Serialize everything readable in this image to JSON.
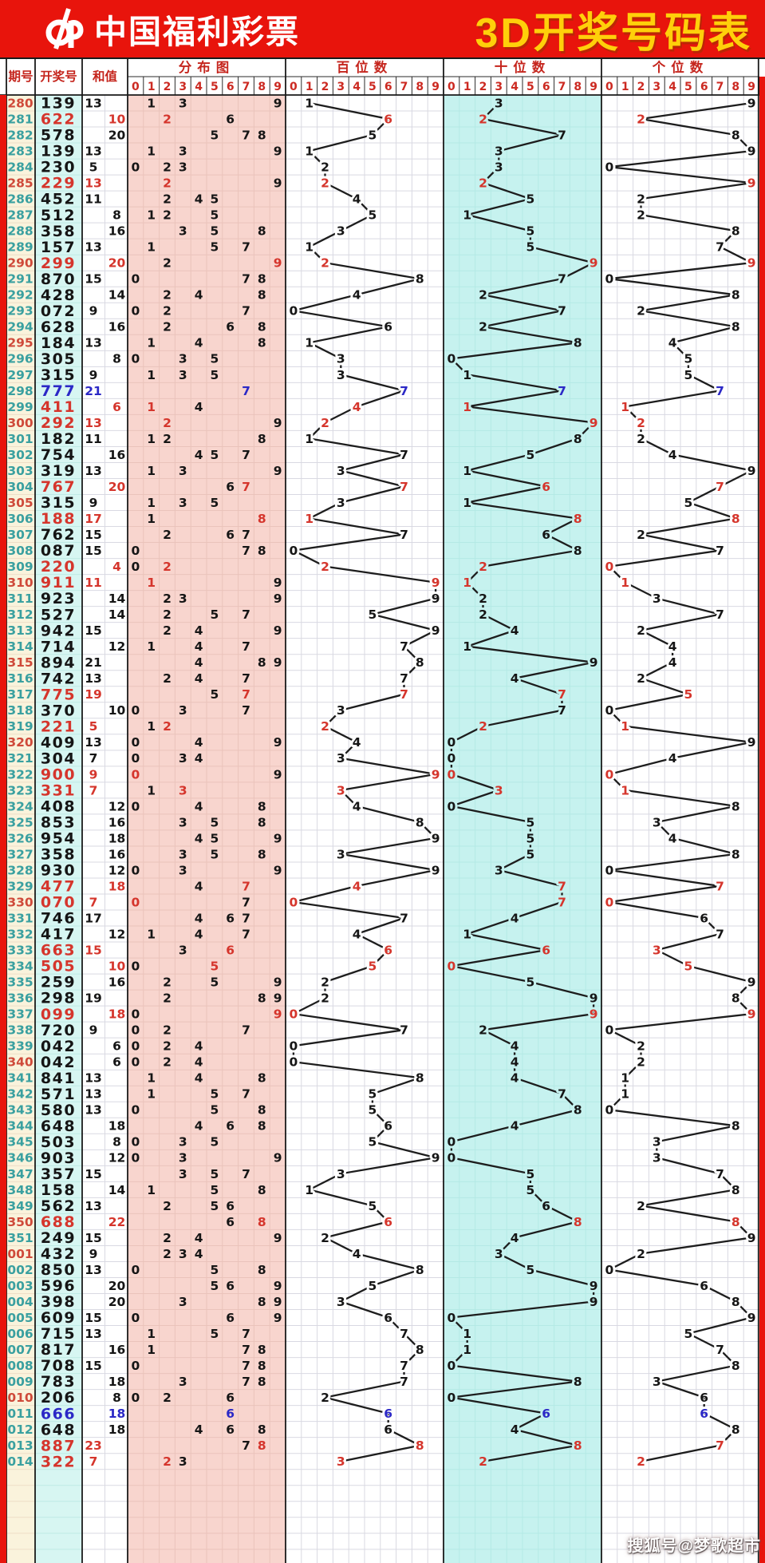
{
  "header": {
    "brand": "中国福利彩票",
    "title": "3D开奖号码表"
  },
  "columns": {
    "period": "期号",
    "number": "开奖号",
    "sum": "和值",
    "distribution": "分布图",
    "hundreds": "百位数",
    "tens": "十位数",
    "units": "个位数"
  },
  "digit_labels": [
    "0",
    "1",
    "2",
    "3",
    "4",
    "5",
    "6",
    "7",
    "8",
    "9"
  ],
  "watermark": {
    "text": "搜狐号@梦歌超市"
  },
  "colors": {
    "banner_red": "#e8140c",
    "title_yellow": "#ffd00a",
    "header_label_red": "#c5251d",
    "digit_header_red": "#cc2a22",
    "period_teal": "#3aa0a0",
    "period_red": "#cf4a3a",
    "text_black": "#151515",
    "pair_red": "#d5352c",
    "triple_blue": "#2b28c6",
    "bg_period_cream": "#faf3dc",
    "bg_number_cyan": "#d7f6f2",
    "bg_distribution_pink": "#f8d5ce",
    "bg_tens_cyan": "#c6f2ef",
    "grid_gray": "#d9d9e2",
    "grid_pink": "#eac3bb",
    "grid_cyan": "#b4e9e5",
    "grid_cream": "#eedec7",
    "grid_lightcyan": "#bfeae5",
    "line_black": "#1d1d1d",
    "border_black": "#1a1a1a"
  },
  "chart_data": {
    "type": "table",
    "note": "3D lottery number chart. Each row: period, 3-digit winning number, digit sum. Sum prints in left sub-column when odd, right when even. 分布图 marks every distinct digit of the number at positions 0-9 (repeated digit shown red). 百位数/十位数/个位数 plot the hundreds/tens/units digit at positions 0-9, consecutive rows joined by black zigzag lines. Numbers with a repeated digit (pairs) print red; triples (777, 666) print blue; period numbers print red when flagged.",
    "digit_axis": [
      0,
      1,
      2,
      3,
      4,
      5,
      6,
      7,
      8,
      9
    ],
    "rows": [
      {
        "period": "280",
        "number": "139",
        "sum": 13,
        "highlight": "none",
        "period_red": true
      },
      {
        "period": "281",
        "number": "622",
        "sum": 10,
        "highlight": "pair",
        "period_red": false
      },
      {
        "period": "282",
        "number": "578",
        "sum": 20,
        "highlight": "none",
        "period_red": false
      },
      {
        "period": "283",
        "number": "139",
        "sum": 13,
        "highlight": "none",
        "period_red": false
      },
      {
        "period": "284",
        "number": "230",
        "sum": 5,
        "highlight": "none",
        "period_red": false
      },
      {
        "period": "285",
        "number": "229",
        "sum": 13,
        "highlight": "pair",
        "period_red": true
      },
      {
        "period": "286",
        "number": "452",
        "sum": 11,
        "highlight": "none",
        "period_red": false
      },
      {
        "period": "287",
        "number": "512",
        "sum": 8,
        "highlight": "none",
        "period_red": false
      },
      {
        "period": "288",
        "number": "358",
        "sum": 16,
        "highlight": "none",
        "period_red": false
      },
      {
        "period": "289",
        "number": "157",
        "sum": 13,
        "highlight": "none",
        "period_red": false
      },
      {
        "period": "290",
        "number": "299",
        "sum": 20,
        "highlight": "pair",
        "period_red": true
      },
      {
        "period": "291",
        "number": "870",
        "sum": 15,
        "highlight": "none",
        "period_red": false
      },
      {
        "period": "292",
        "number": "428",
        "sum": 14,
        "highlight": "none",
        "period_red": false
      },
      {
        "period": "293",
        "number": "072",
        "sum": 9,
        "highlight": "none",
        "period_red": false
      },
      {
        "period": "294",
        "number": "628",
        "sum": 16,
        "highlight": "none",
        "period_red": false
      },
      {
        "period": "295",
        "number": "184",
        "sum": 13,
        "highlight": "none",
        "period_red": true
      },
      {
        "period": "296",
        "number": "305",
        "sum": 8,
        "highlight": "none",
        "period_red": false
      },
      {
        "period": "297",
        "number": "315",
        "sum": 9,
        "highlight": "none",
        "period_red": false
      },
      {
        "period": "298",
        "number": "777",
        "sum": 21,
        "highlight": "triple",
        "period_red": false
      },
      {
        "period": "299",
        "number": "411",
        "sum": 6,
        "highlight": "pair",
        "period_red": false
      },
      {
        "period": "300",
        "number": "292",
        "sum": 13,
        "highlight": "pair",
        "period_red": true
      },
      {
        "period": "301",
        "number": "182",
        "sum": 11,
        "highlight": "none",
        "period_red": false
      },
      {
        "period": "302",
        "number": "754",
        "sum": 16,
        "highlight": "none",
        "period_red": false
      },
      {
        "period": "303",
        "number": "319",
        "sum": 13,
        "highlight": "none",
        "period_red": false
      },
      {
        "period": "304",
        "number": "767",
        "sum": 20,
        "highlight": "pair",
        "period_red": false
      },
      {
        "period": "305",
        "number": "315",
        "sum": 9,
        "highlight": "none",
        "period_red": true
      },
      {
        "period": "306",
        "number": "188",
        "sum": 17,
        "highlight": "pair",
        "period_red": false
      },
      {
        "period": "307",
        "number": "762",
        "sum": 15,
        "highlight": "none",
        "period_red": false
      },
      {
        "period": "308",
        "number": "087",
        "sum": 15,
        "highlight": "none",
        "period_red": false
      },
      {
        "period": "309",
        "number": "220",
        "sum": 4,
        "highlight": "pair",
        "period_red": false
      },
      {
        "period": "310",
        "number": "911",
        "sum": 11,
        "highlight": "pair",
        "period_red": true
      },
      {
        "period": "311",
        "number": "923",
        "sum": 14,
        "highlight": "none",
        "period_red": false
      },
      {
        "period": "312",
        "number": "527",
        "sum": 14,
        "highlight": "none",
        "period_red": false
      },
      {
        "period": "313",
        "number": "942",
        "sum": 15,
        "highlight": "none",
        "period_red": false
      },
      {
        "period": "314",
        "number": "714",
        "sum": 12,
        "highlight": "none",
        "period_red": false
      },
      {
        "period": "315",
        "number": "894",
        "sum": 21,
        "highlight": "none",
        "period_red": true
      },
      {
        "period": "316",
        "number": "742",
        "sum": 13,
        "highlight": "none",
        "period_red": false
      },
      {
        "period": "317",
        "number": "775",
        "sum": 19,
        "highlight": "pair",
        "period_red": false
      },
      {
        "period": "318",
        "number": "370",
        "sum": 10,
        "highlight": "none",
        "period_red": false
      },
      {
        "period": "319",
        "number": "221",
        "sum": 5,
        "highlight": "pair",
        "period_red": false
      },
      {
        "period": "320",
        "number": "409",
        "sum": 13,
        "highlight": "none",
        "period_red": true
      },
      {
        "period": "321",
        "number": "304",
        "sum": 7,
        "highlight": "none",
        "period_red": false
      },
      {
        "period": "322",
        "number": "900",
        "sum": 9,
        "highlight": "pair",
        "period_red": false
      },
      {
        "period": "323",
        "number": "331",
        "sum": 7,
        "highlight": "pair",
        "period_red": false
      },
      {
        "period": "324",
        "number": "408",
        "sum": 12,
        "highlight": "none",
        "period_red": false
      },
      {
        "period": "325",
        "number": "853",
        "sum": 16,
        "highlight": "none",
        "period_red": false
      },
      {
        "period": "326",
        "number": "954",
        "sum": 18,
        "highlight": "none",
        "period_red": false
      },
      {
        "period": "327",
        "number": "358",
        "sum": 16,
        "highlight": "none",
        "period_red": false
      },
      {
        "period": "328",
        "number": "930",
        "sum": 12,
        "highlight": "none",
        "period_red": false
      },
      {
        "period": "329",
        "number": "477",
        "sum": 18,
        "highlight": "pair",
        "period_red": false
      },
      {
        "period": "330",
        "number": "070",
        "sum": 7,
        "highlight": "pair",
        "period_red": true
      },
      {
        "period": "331",
        "number": "746",
        "sum": 17,
        "highlight": "none",
        "period_red": false
      },
      {
        "period": "332",
        "number": "417",
        "sum": 12,
        "highlight": "none",
        "period_red": false
      },
      {
        "period": "333",
        "number": "663",
        "sum": 15,
        "highlight": "pair",
        "period_red": false
      },
      {
        "period": "334",
        "number": "505",
        "sum": 10,
        "highlight": "pair",
        "period_red": false
      },
      {
        "period": "335",
        "number": "259",
        "sum": 16,
        "highlight": "none",
        "period_red": false
      },
      {
        "period": "336",
        "number": "298",
        "sum": 19,
        "highlight": "none",
        "period_red": false
      },
      {
        "period": "337",
        "number": "099",
        "sum": 18,
        "highlight": "pair",
        "period_red": false
      },
      {
        "period": "338",
        "number": "720",
        "sum": 9,
        "highlight": "none",
        "period_red": false
      },
      {
        "period": "339",
        "number": "042",
        "sum": 6,
        "highlight": "none",
        "period_red": false
      },
      {
        "period": "340",
        "number": "042",
        "sum": 6,
        "highlight": "none",
        "period_red": true
      },
      {
        "period": "341",
        "number": "841",
        "sum": 13,
        "highlight": "none",
        "period_red": false
      },
      {
        "period": "342",
        "number": "571",
        "sum": 13,
        "highlight": "none",
        "period_red": false
      },
      {
        "period": "343",
        "number": "580",
        "sum": 13,
        "highlight": "none",
        "period_red": false
      },
      {
        "period": "344",
        "number": "648",
        "sum": 18,
        "highlight": "none",
        "period_red": false
      },
      {
        "period": "345",
        "number": "503",
        "sum": 8,
        "highlight": "none",
        "period_red": false
      },
      {
        "period": "346",
        "number": "903",
        "sum": 12,
        "highlight": "none",
        "period_red": false
      },
      {
        "period": "347",
        "number": "357",
        "sum": 15,
        "highlight": "none",
        "period_red": false
      },
      {
        "period": "348",
        "number": "158",
        "sum": 14,
        "highlight": "none",
        "period_red": false
      },
      {
        "period": "349",
        "number": "562",
        "sum": 13,
        "highlight": "none",
        "period_red": false
      },
      {
        "period": "350",
        "number": "688",
        "sum": 22,
        "highlight": "pair",
        "period_red": true
      },
      {
        "period": "351",
        "number": "249",
        "sum": 15,
        "highlight": "none",
        "period_red": false
      },
      {
        "period": "001",
        "number": "432",
        "sum": 9,
        "highlight": "none",
        "period_red": true
      },
      {
        "period": "002",
        "number": "850",
        "sum": 13,
        "highlight": "none",
        "period_red": false
      },
      {
        "period": "003",
        "number": "596",
        "sum": 20,
        "highlight": "none",
        "period_red": false
      },
      {
        "period": "004",
        "number": "398",
        "sum": 20,
        "highlight": "none",
        "period_red": false
      },
      {
        "period": "005",
        "number": "609",
        "sum": 15,
        "highlight": "none",
        "period_red": false
      },
      {
        "period": "006",
        "number": "715",
        "sum": 13,
        "highlight": "none",
        "period_red": false
      },
      {
        "period": "007",
        "number": "817",
        "sum": 16,
        "highlight": "none",
        "period_red": false
      },
      {
        "period": "008",
        "number": "708",
        "sum": 15,
        "highlight": "none",
        "period_red": false
      },
      {
        "period": "009",
        "number": "783",
        "sum": 18,
        "highlight": "none",
        "period_red": false
      },
      {
        "period": "010",
        "number": "206",
        "sum": 8,
        "highlight": "none",
        "period_red": true
      },
      {
        "period": "011",
        "number": "666",
        "sum": 18,
        "highlight": "triple",
        "period_red": false
      },
      {
        "period": "012",
        "number": "648",
        "sum": 18,
        "highlight": "none",
        "period_red": false
      },
      {
        "period": "013",
        "number": "887",
        "sum": 23,
        "highlight": "pair",
        "period_red": false
      },
      {
        "period": "014",
        "number": "322",
        "sum": 7,
        "highlight": "pair",
        "period_red": false
      }
    ]
  }
}
